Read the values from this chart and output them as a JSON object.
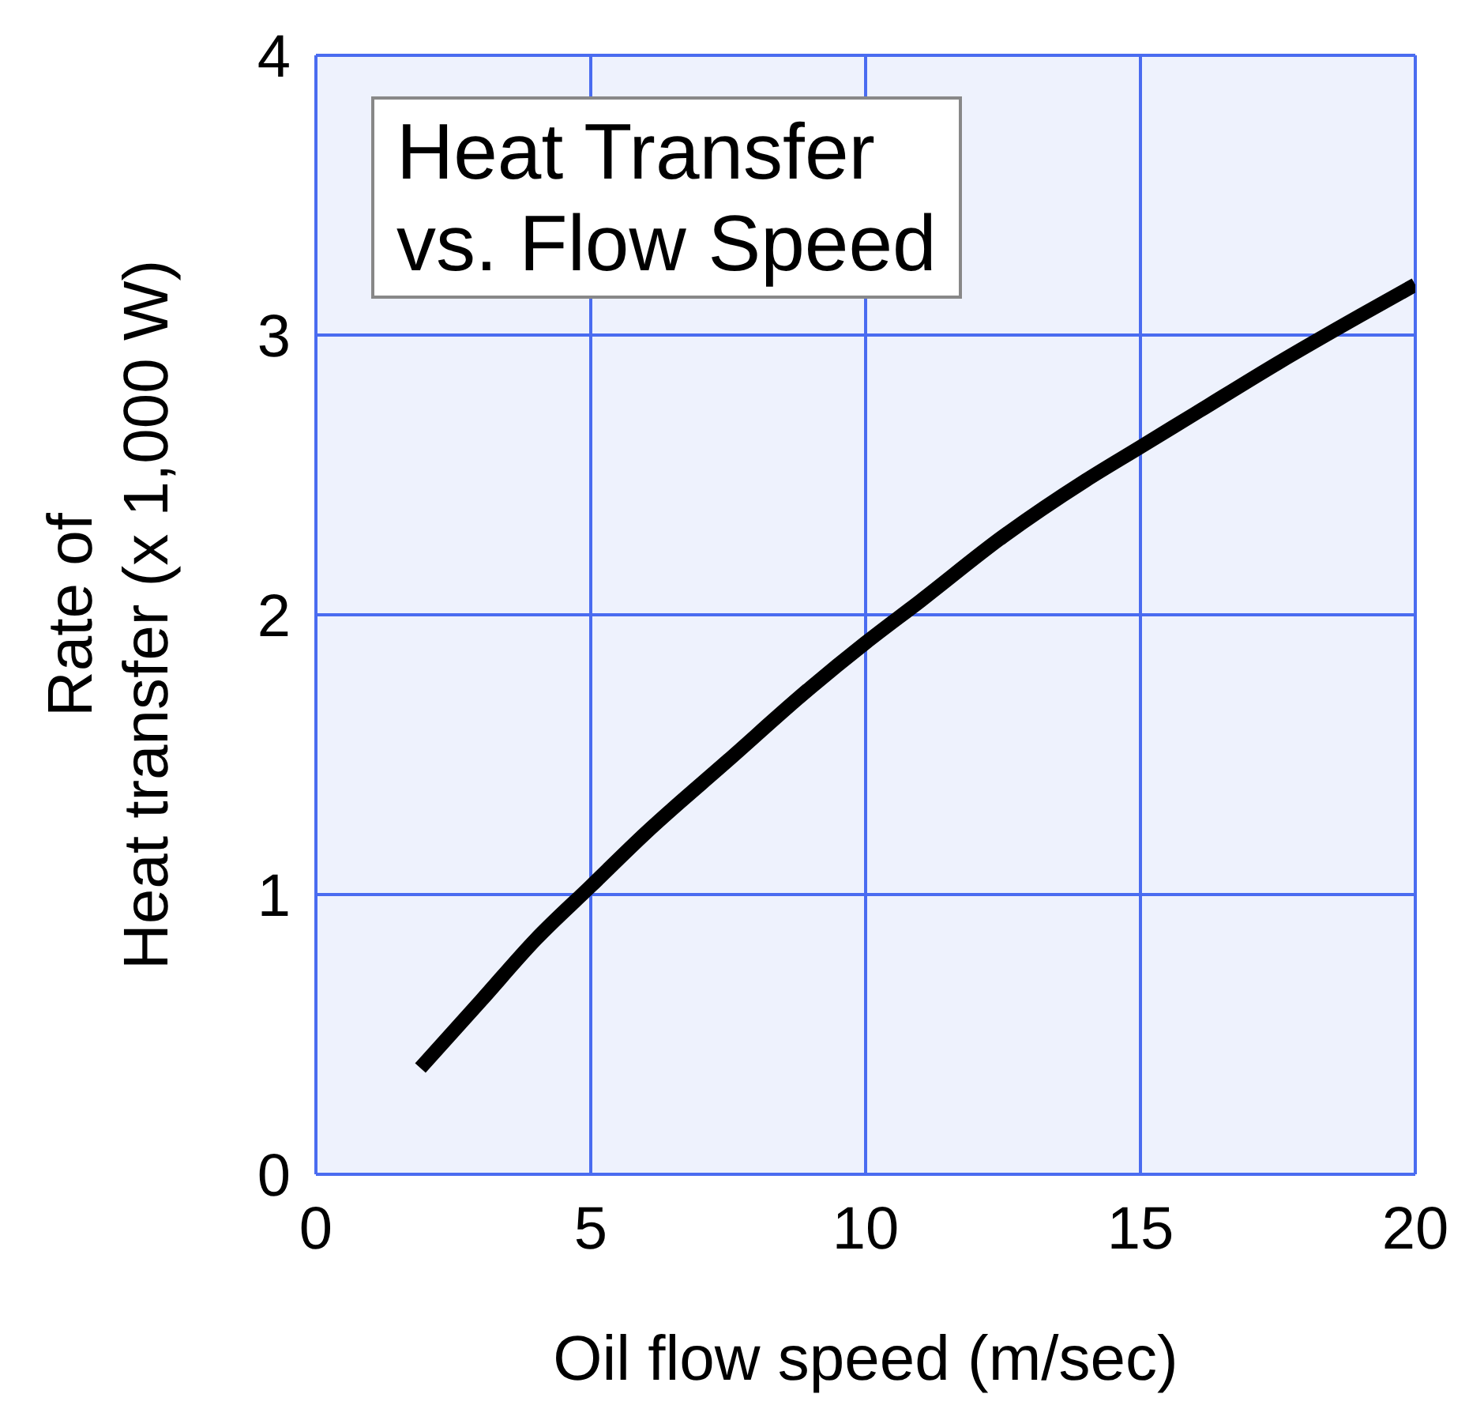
{
  "chart_data": {
    "type": "line",
    "title": "Heat Transfer\nvs. Flow Speed",
    "xlabel": "Oil flow speed (m/sec)",
    "ylabel": "Rate of\nHeat transfer (x 1,000 W)",
    "x": [
      1.9,
      3,
      4,
      5,
      6,
      7.5,
      9,
      10,
      11,
      12.5,
      14,
      15,
      16,
      17.5,
      19,
      20
    ],
    "series": [
      {
        "color": "#000000",
        "values": [
          0.38,
          0.62,
          0.84,
          1.03,
          1.22,
          1.48,
          1.74,
          1.9,
          2.05,
          2.28,
          2.48,
          2.6,
          2.72,
          2.9,
          3.07,
          3.18
        ]
      }
    ],
    "xlim": [
      0,
      20
    ],
    "xticks": [
      0,
      5,
      10,
      15,
      20
    ],
    "ylim": [
      0,
      4
    ],
    "yticks": [
      0,
      1,
      2,
      3,
      4
    ],
    "grid": true,
    "marker": "none",
    "line_style": "solid"
  }
}
